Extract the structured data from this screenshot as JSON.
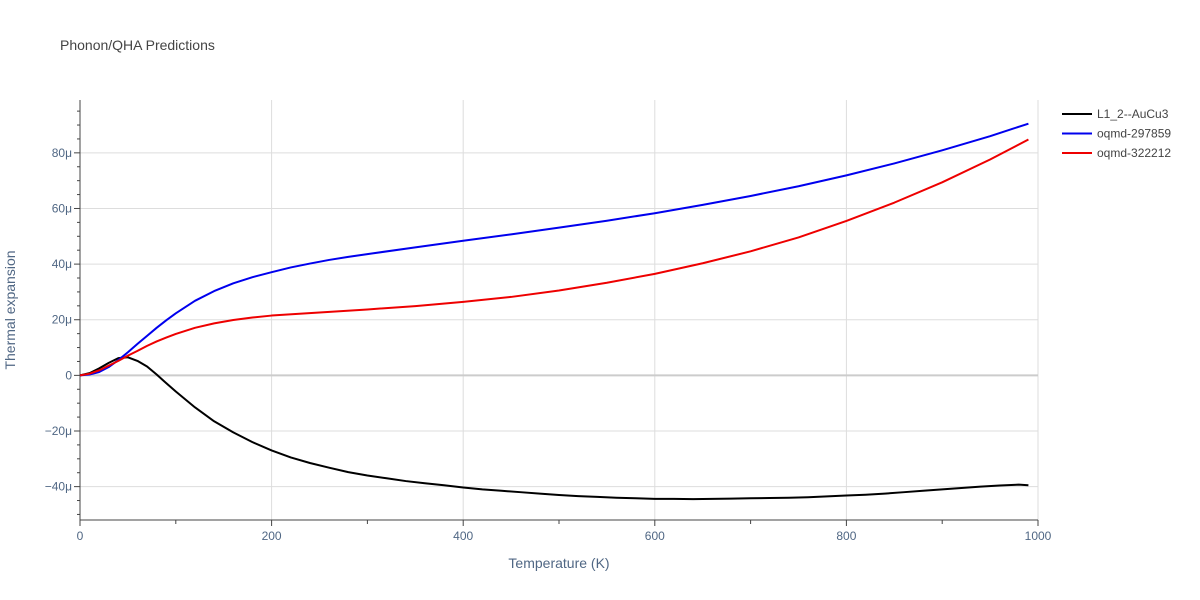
{
  "chart_data": {
    "type": "line",
    "title": "Phonon/QHA Predictions",
    "xlabel": "Temperature (K)",
    "ylabel": "Thermal expansion",
    "xlim": [
      0,
      1000
    ],
    "ylim": [
      -52,
      99
    ],
    "x_ticks": [
      0,
      200,
      400,
      600,
      800,
      1000
    ],
    "x_tick_labels": [
      "0",
      "200",
      "400",
      "600",
      "800",
      "1000"
    ],
    "y_ticks": [
      -40,
      -20,
      0,
      20,
      40,
      60,
      80
    ],
    "y_tick_labels": [
      "−40μ",
      "−20μ",
      "0",
      "20μ",
      "40μ",
      "60μ",
      "80μ"
    ],
    "y_unit": "μ (1e-6 / K)",
    "grid": true,
    "legend_position": "top-right",
    "series": [
      {
        "name": "L1_2--AuCu3",
        "color": "#000000",
        "x": [
          0,
          10,
          20,
          30,
          40,
          50,
          60,
          70,
          80,
          90,
          100,
          120,
          140,
          160,
          180,
          200,
          220,
          240,
          260,
          280,
          300,
          320,
          340,
          360,
          380,
          400,
          420,
          440,
          460,
          480,
          500,
          520,
          540,
          560,
          580,
          600,
          620,
          640,
          660,
          680,
          700,
          720,
          740,
          760,
          780,
          800,
          820,
          840,
          860,
          880,
          900,
          920,
          940,
          960,
          980,
          990
        ],
        "y": [
          0,
          0.8,
          2.5,
          4.5,
          6.2,
          6.5,
          5.2,
          3.2,
          0.3,
          -2.8,
          -5.8,
          -11.5,
          -16.5,
          -20.5,
          -24,
          -27,
          -29.5,
          -31.5,
          -33.2,
          -34.8,
          -36,
          -37,
          -38,
          -38.8,
          -39.5,
          -40.3,
          -41,
          -41.5,
          -42,
          -42.5,
          -43,
          -43.4,
          -43.7,
          -44,
          -44.2,
          -44.4,
          -44.4,
          -44.5,
          -44.4,
          -44.3,
          -44.2,
          -44.1,
          -44,
          -43.8,
          -43.5,
          -43.2,
          -42.9,
          -42.5,
          -42,
          -41.5,
          -41,
          -40.5,
          -40,
          -39.6,
          -39.3,
          -39.5
        ]
      },
      {
        "name": "oqmd-297859",
        "color": "#0000ee",
        "x": [
          0,
          10,
          20,
          30,
          40,
          50,
          60,
          70,
          80,
          90,
          100,
          120,
          140,
          160,
          180,
          200,
          220,
          240,
          260,
          280,
          300,
          350,
          400,
          450,
          500,
          550,
          600,
          650,
          700,
          750,
          800,
          850,
          900,
          950,
          990
        ],
        "y": [
          0,
          0.3,
          1.2,
          3.0,
          5.5,
          8.3,
          11.3,
          14.2,
          17.1,
          19.8,
          22.3,
          26.8,
          30.3,
          33.1,
          35.3,
          37.1,
          38.8,
          40.2,
          41.5,
          42.6,
          43.6,
          46.0,
          48.4,
          50.7,
          53.1,
          55.6,
          58.3,
          61.3,
          64.5,
          68.0,
          71.9,
          76.2,
          80.9,
          86.0,
          90.5
        ]
      },
      {
        "name": "oqmd-322212",
        "color": "#ee0000",
        "x": [
          0,
          10,
          20,
          30,
          40,
          50,
          60,
          70,
          80,
          90,
          100,
          120,
          140,
          160,
          180,
          200,
          250,
          300,
          350,
          400,
          450,
          500,
          550,
          600,
          650,
          700,
          750,
          800,
          850,
          900,
          950,
          990
        ],
        "y": [
          0,
          0.6,
          1.8,
          3.5,
          5.2,
          7.1,
          8.8,
          10.6,
          12.2,
          13.6,
          14.9,
          17.1,
          18.7,
          19.9,
          20.8,
          21.5,
          22.6,
          23.7,
          24.9,
          26.4,
          28.2,
          30.5,
          33.3,
          36.5,
          40.3,
          44.6,
          49.6,
          55.5,
          62.1,
          69.4,
          77.6,
          84.8
        ]
      }
    ]
  }
}
